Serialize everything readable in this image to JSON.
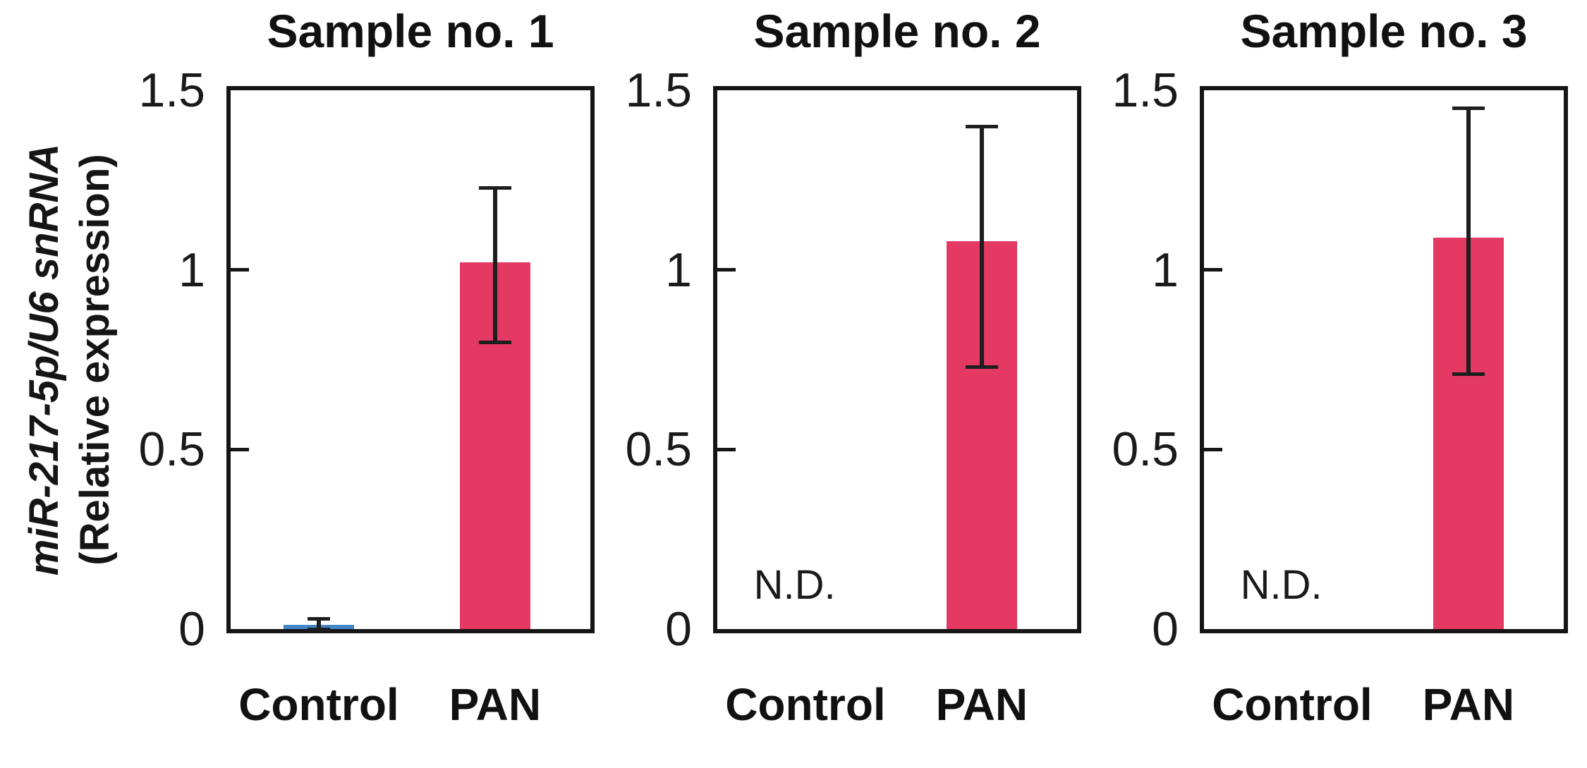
{
  "figure": {
    "ylabel_line1": "miR-217-5p/U6 snRNA",
    "ylabel_line2": "(Relative expression)"
  },
  "chart_data": {
    "type": "bar",
    "ylabel": "miR-217-5p/U6 snRNA (Relative expression)",
    "ylim": [
      0,
      1.5
    ],
    "yticks": [
      0,
      0.5,
      1,
      1.5
    ],
    "ytick_labels": [
      "0",
      "0.5",
      "1",
      "1.5"
    ],
    "grid": false,
    "legend": "none",
    "categories": [
      "Control",
      "PAN"
    ],
    "colors": {
      "control": "#4287C6",
      "pan": "#E33962",
      "error": "#1e1e1e"
    },
    "nd_text": "N.D.",
    "panels": [
      {
        "title": "Sample no. 1",
        "bars": [
          {
            "category": "Control",
            "value": 0.012,
            "err_low": 0,
            "err_high": 0.03,
            "color": "#4287C6",
            "nd": false
          },
          {
            "category": "PAN",
            "value": 1.02,
            "err_low": 0.8,
            "err_high": 1.23,
            "color": "#E33962",
            "nd": false
          }
        ]
      },
      {
        "title": "Sample no. 2",
        "bars": [
          {
            "category": "Control",
            "value": null,
            "nd": true,
            "nd_label": "N.D."
          },
          {
            "category": "PAN",
            "value": 1.08,
            "err_low": 0.73,
            "err_high": 1.4,
            "color": "#E33962",
            "nd": false
          }
        ]
      },
      {
        "title": "Sample no. 3",
        "bars": [
          {
            "category": "Control",
            "value": null,
            "nd": true,
            "nd_label": "N.D."
          },
          {
            "category": "PAN",
            "value": 1.09,
            "err_low": 0.71,
            "err_high": 1.45,
            "color": "#E33962",
            "nd": false
          }
        ]
      }
    ]
  }
}
